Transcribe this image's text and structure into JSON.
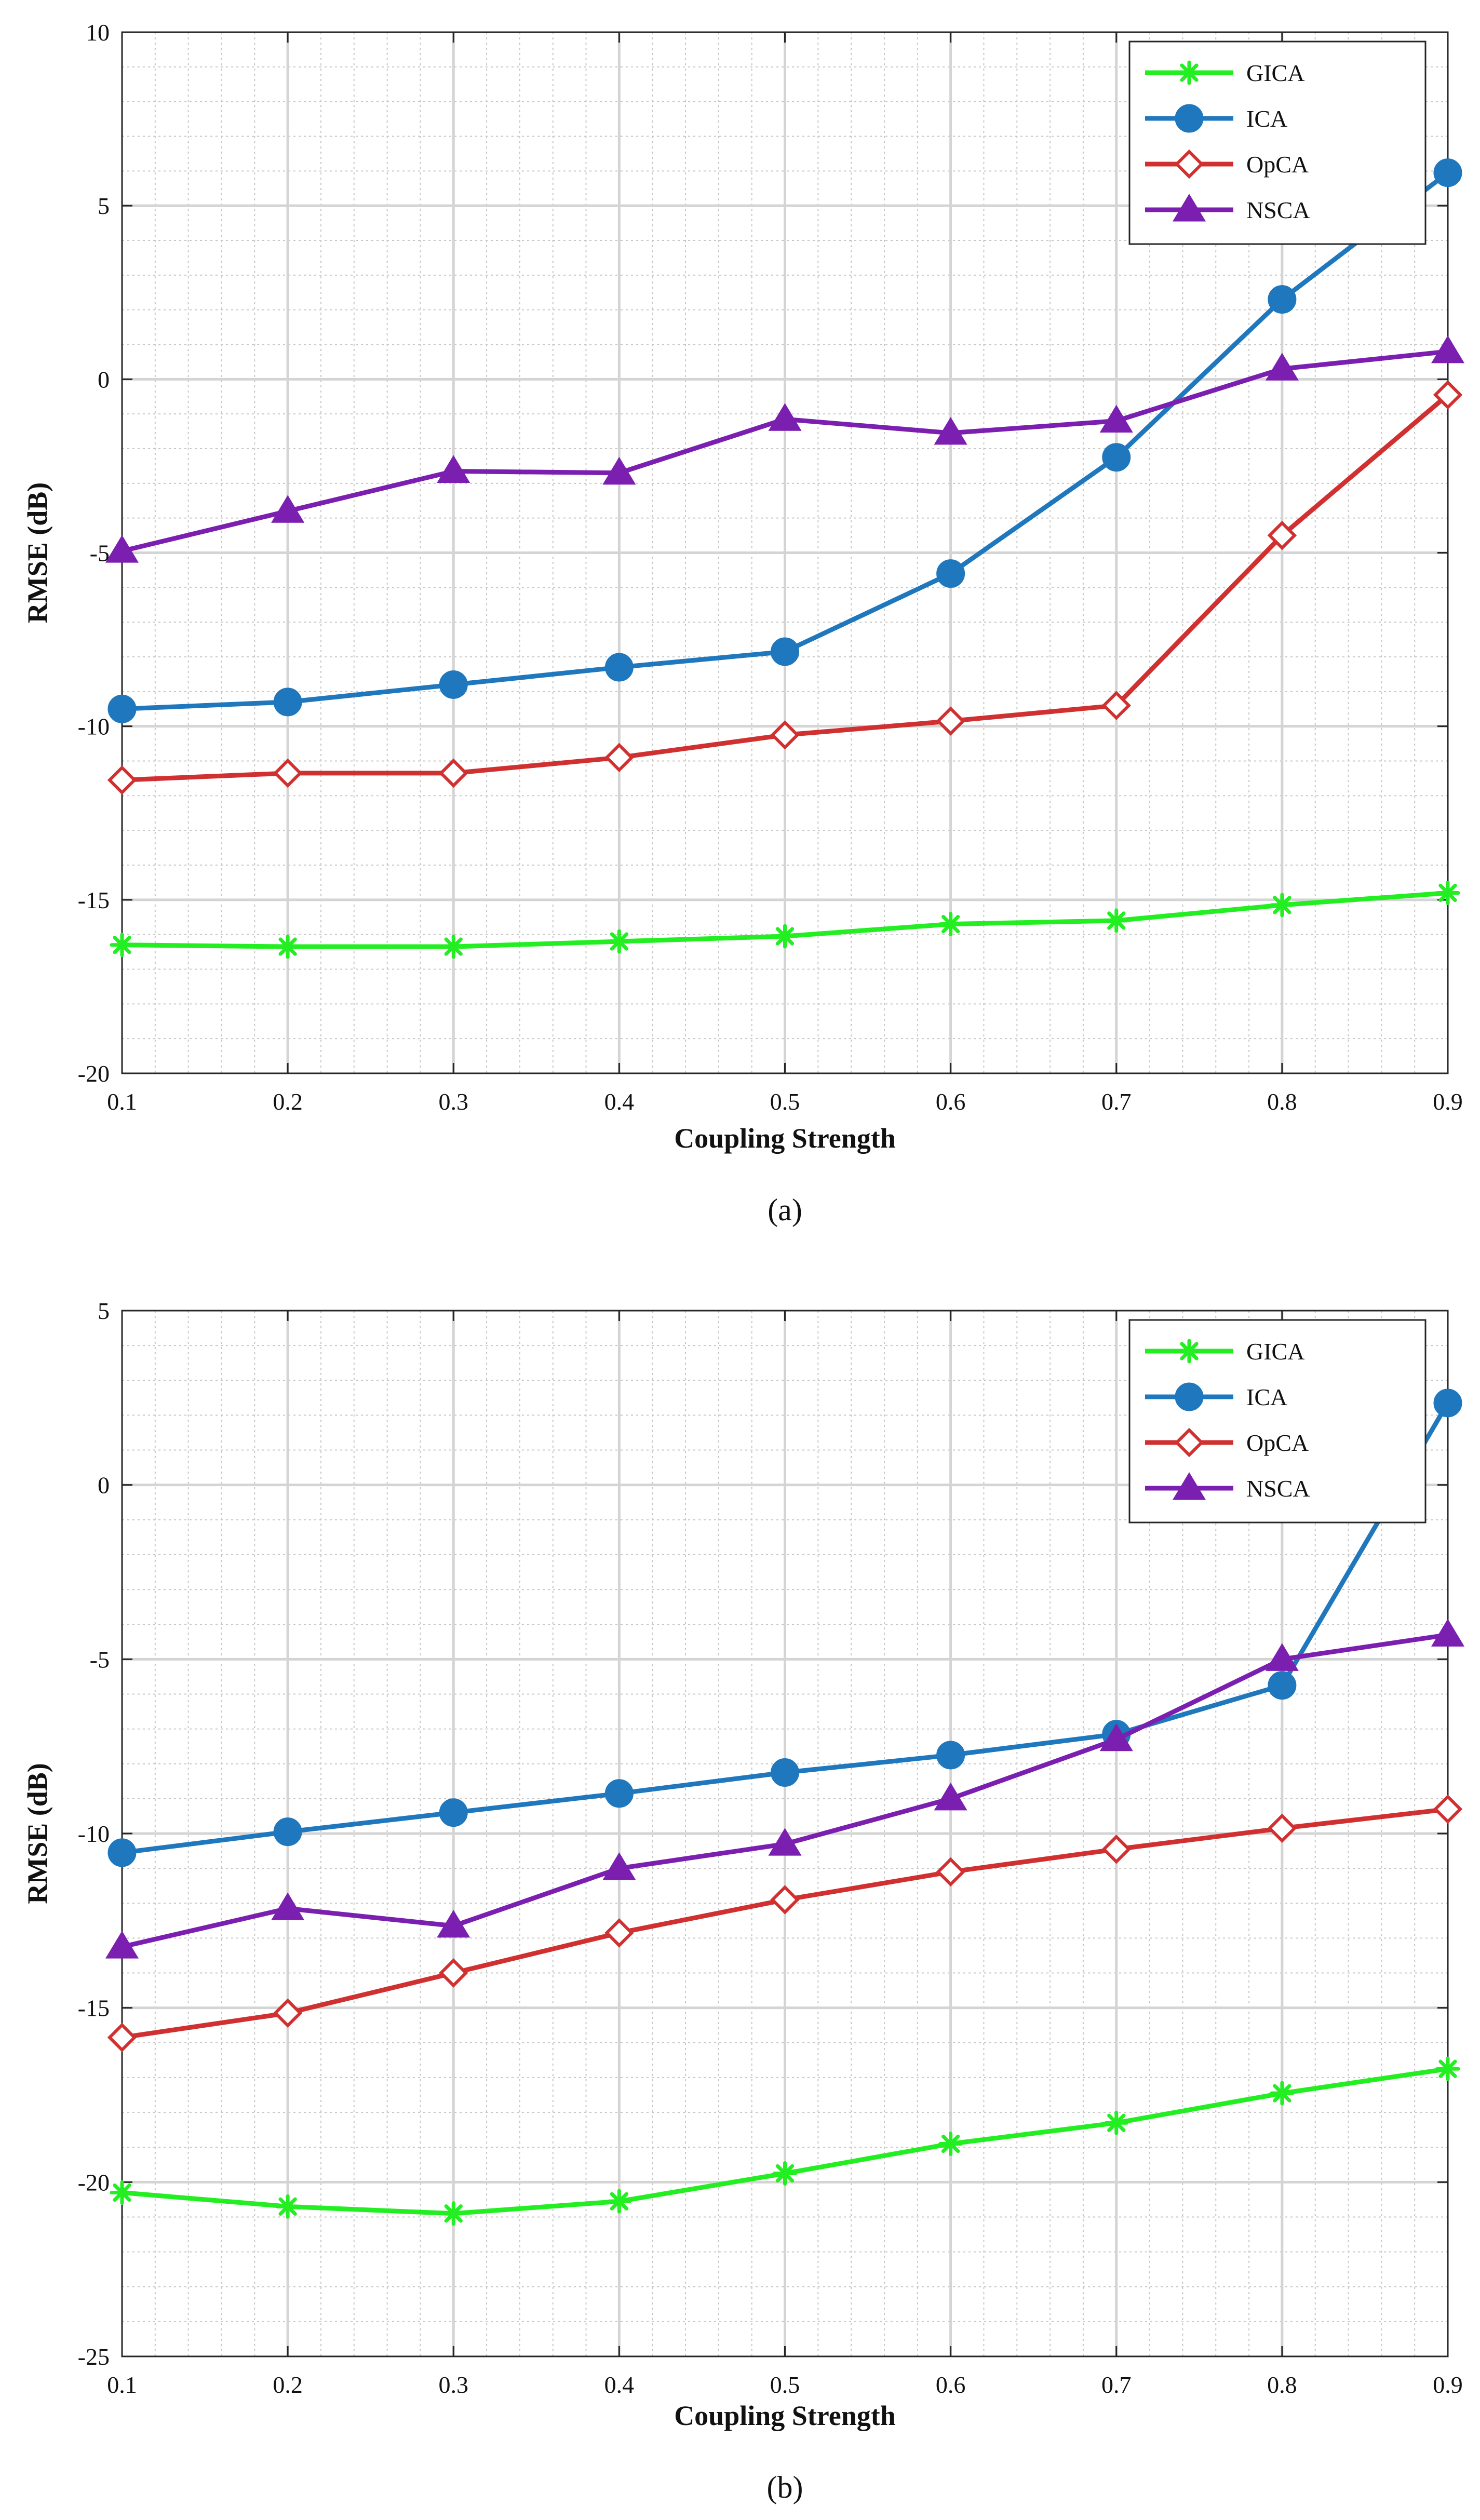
{
  "chart_data": [
    {
      "type": "line",
      "panel": "a",
      "caption": "(a)",
      "xlabel": "Coupling Strength",
      "ylabel": "RMSE (dB)",
      "x": [
        0.1,
        0.2,
        0.3,
        0.4,
        0.5,
        0.6,
        0.7,
        0.8,
        0.9
      ],
      "xlim": [
        0.1,
        0.9
      ],
      "ylim": [
        -20,
        10
      ],
      "xticks": [
        "0.1",
        "0.2",
        "0.3",
        "0.4",
        "0.5",
        "0.6",
        "0.7",
        "0.8",
        "0.9"
      ],
      "yticks": [
        "-20",
        "-15",
        "-10",
        "-5",
        "0",
        "5",
        "10"
      ],
      "ytick_values": [
        -20,
        -15,
        -10,
        -5,
        0,
        5,
        10
      ],
      "grid": true,
      "legend_position": "top-right",
      "series": [
        {
          "name": "GICA",
          "color": "#22ee22",
          "marker": "asterisk",
          "values": [
            -16.3,
            -16.35,
            -16.35,
            -16.2,
            -16.05,
            -15.7,
            -15.6,
            -15.15,
            -14.8
          ]
        },
        {
          "name": "ICA",
          "color": "#1f77bd",
          "marker": "circle",
          "values": [
            -9.5,
            -9.3,
            -8.8,
            -8.3,
            -7.85,
            -5.6,
            -2.25,
            2.3,
            5.95
          ]
        },
        {
          "name": "OpCA",
          "color": "#d03030",
          "marker": "diamond",
          "values": [
            -11.55,
            -11.35,
            -11.35,
            -10.9,
            -10.25,
            -9.85,
            -9.4,
            -4.5,
            -0.45
          ]
        },
        {
          "name": "NSCA",
          "color": "#7b1fb0",
          "marker": "triangle",
          "values": [
            -4.95,
            -3.8,
            -2.65,
            -2.7,
            -1.15,
            -1.55,
            -1.2,
            0.3,
            0.8
          ]
        }
      ]
    },
    {
      "type": "line",
      "panel": "b",
      "caption": "(b)",
      "xlabel": "Coupling Strength",
      "ylabel": "RMSE (dB)",
      "x": [
        0.1,
        0.2,
        0.3,
        0.4,
        0.5,
        0.6,
        0.7,
        0.8,
        0.9
      ],
      "xlim": [
        0.1,
        0.9
      ],
      "ylim": [
        -25,
        5
      ],
      "xticks": [
        "0.1",
        "0.2",
        "0.3",
        "0.4",
        "0.5",
        "0.6",
        "0.7",
        "0.8",
        "0.9"
      ],
      "yticks": [
        "-25",
        "-20",
        "-15",
        "-10",
        "-5",
        "0",
        "5"
      ],
      "ytick_values": [
        -25,
        -20,
        -15,
        -10,
        -5,
        0,
        5
      ],
      "grid": true,
      "legend_position": "top-right",
      "series": [
        {
          "name": "GICA",
          "color": "#22ee22",
          "marker": "asterisk",
          "values": [
            -20.3,
            -20.7,
            -20.9,
            -20.55,
            -19.75,
            -18.9,
            -18.3,
            -17.45,
            -16.75
          ]
        },
        {
          "name": "ICA",
          "color": "#1f77bd",
          "marker": "circle",
          "values": [
            -10.55,
            -9.95,
            -9.4,
            -8.85,
            -8.25,
            -7.75,
            -7.15,
            -5.75,
            2.35
          ]
        },
        {
          "name": "OpCA",
          "color": "#d03030",
          "marker": "diamond",
          "values": [
            -15.85,
            -15.15,
            -14.0,
            -12.85,
            -11.9,
            -11.1,
            -10.45,
            -9.85,
            -9.3
          ]
        },
        {
          "name": "NSCA",
          "color": "#7b1fb0",
          "marker": "triangle",
          "values": [
            -13.25,
            -12.15,
            -12.65,
            -11.0,
            -10.3,
            -9.0,
            -7.3,
            -5.0,
            -4.3
          ]
        }
      ]
    }
  ]
}
